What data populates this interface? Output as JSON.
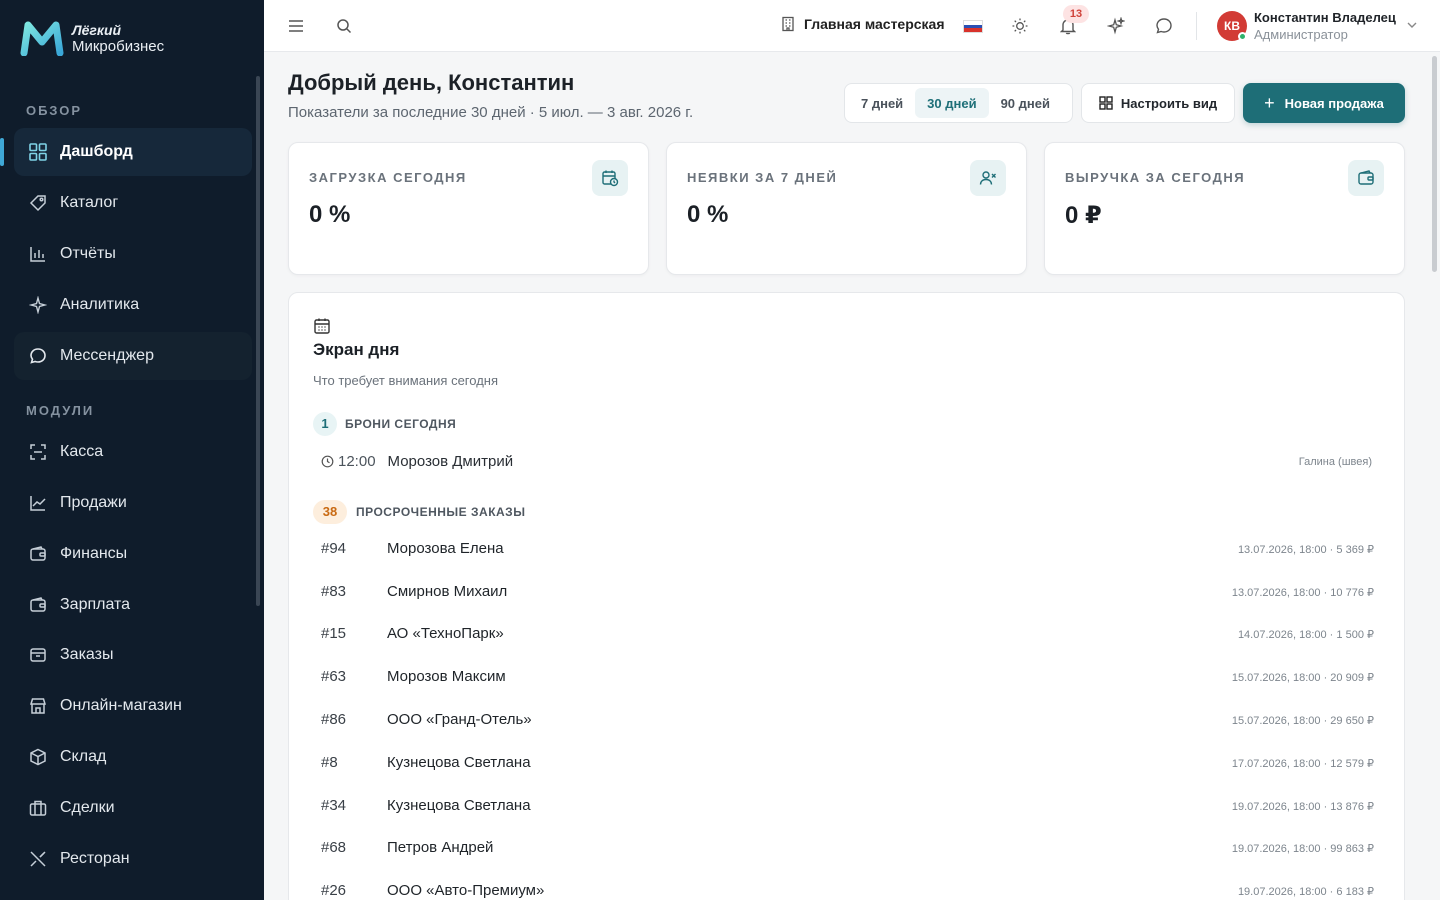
{
  "app": {
    "logo_top": "Лёгкий",
    "logo_bottom": "Микробизнес"
  },
  "sidebar": {
    "section_overview": "ОБЗОР",
    "section_modules": "МОДУЛИ",
    "items": [
      {
        "label": "Дашборд",
        "icon": "dashboard-icon"
      },
      {
        "label": "Каталог",
        "icon": "catalog-icon"
      },
      {
        "label": "Отчёты",
        "icon": "reports-icon"
      },
      {
        "label": "Аналитика",
        "icon": "sparkle-icon"
      },
      {
        "label": "Мессенджер",
        "icon": "chat-icon"
      },
      {
        "label": "Касса",
        "icon": "scan-icon"
      },
      {
        "label": "Продажи",
        "icon": "chart-line-icon"
      },
      {
        "label": "Финансы",
        "icon": "wallet-icon"
      },
      {
        "label": "Зарплата",
        "icon": "wallet-icon"
      },
      {
        "label": "Заказы",
        "icon": "box-icon"
      },
      {
        "label": "Онлайн-магазин",
        "icon": "store-icon"
      },
      {
        "label": "Склад",
        "icon": "package-icon"
      },
      {
        "label": "Сделки",
        "icon": "briefcase-icon"
      },
      {
        "label": "Ресторан",
        "icon": "utensils-icon"
      }
    ]
  },
  "topbar": {
    "workshop": "Главная мастерская",
    "notifications_count": "13",
    "user_initials": "КВ",
    "user_name": "Константин Владелец",
    "user_role": "Администратор"
  },
  "header": {
    "greeting": "Добрый день, Константин",
    "subtitle": "Показатели за последние 30 дней · 5 июл. — 3 авг. 2026 г.",
    "ranges": [
      "7 дней",
      "30 дней",
      "90 дней"
    ],
    "active_range": "30 дней",
    "customize_label": "Настроить вид",
    "new_sale_label": "Новая продажа"
  },
  "kpis": [
    {
      "label": "ЗАГРУЗКА СЕГОДНЯ",
      "value": "0 %"
    },
    {
      "label": "НЕЯВКИ ЗА 7 ДНЕЙ",
      "value": "0 %"
    },
    {
      "label": "ВЫРУЧКА ЗА СЕГОДНЯ",
      "value": "0 ₽"
    }
  ],
  "day_screen": {
    "title": "Экран дня",
    "subtitle": "Что требует внимания сегодня",
    "bookings_count": "1",
    "bookings_label": "БРОНИ СЕГОДНЯ",
    "booking": {
      "time": "12:00",
      "client": "Морозов Дмитрий",
      "staff": "Галина (швея)"
    },
    "overdue_count": "38",
    "overdue_label": "ПРОСРОЧЕННЫЕ ЗАКАЗЫ",
    "orders": [
      {
        "num": "#94",
        "name": "Морозова Елена",
        "meta": "13.07.2026, 18:00 · 5 369 ₽"
      },
      {
        "num": "#83",
        "name": "Смирнов Михаил",
        "meta": "13.07.2026, 18:00 · 10 776 ₽"
      },
      {
        "num": "#15",
        "name": "АО «ТехноПарк»",
        "meta": "14.07.2026, 18:00 · 1 500 ₽"
      },
      {
        "num": "#63",
        "name": "Морозов Максим",
        "meta": "15.07.2026, 18:00 · 20 909 ₽"
      },
      {
        "num": "#86",
        "name": "ООО «Гранд-Отель»",
        "meta": "15.07.2026, 18:00 · 29 650 ₽"
      },
      {
        "num": "#8",
        "name": "Кузнецова Светлана",
        "meta": "17.07.2026, 18:00 · 12 579 ₽"
      },
      {
        "num": "#34",
        "name": "Кузнецова Светлана",
        "meta": "19.07.2026, 18:00 · 13 876 ₽"
      },
      {
        "num": "#68",
        "name": "Петров Андрей",
        "meta": "19.07.2026, 18:00 · 99 863 ₽"
      },
      {
        "num": "#26",
        "name": "ООО «Авто-Премиум»",
        "meta": "19.07.2026, 18:00 · 6 183 ₽"
      }
    ]
  },
  "colors": {
    "sidebar_bg": "#0f1c2b",
    "accent": "#1e6e77",
    "danger": "#d23b35"
  }
}
